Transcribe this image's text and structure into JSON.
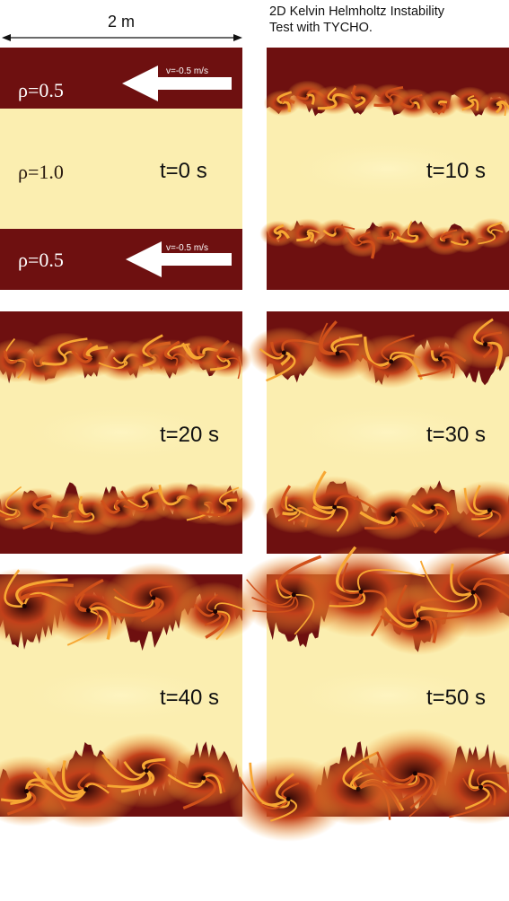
{
  "title_line1": "2D Kelvin Helmholtz Instability",
  "title_line2": "Test with TYCHO.",
  "width_label": "2 m",
  "initial": {
    "rho_top": "ρ=0.5",
    "rho_mid": "ρ=1.0",
    "rho_bot": "ρ=0.5",
    "vel_top": "v=-0.5 m/s",
    "vel_bot": "v=-0.5 m/s"
  },
  "panels": [
    {
      "id": "t0",
      "label": "t=0 s",
      "turbulence": 0
    },
    {
      "id": "t10",
      "label": "t=10 s",
      "turbulence": 1
    },
    {
      "id": "t20",
      "label": "t=20 s",
      "turbulence": 2
    },
    {
      "id": "t30",
      "label": "t=30 s",
      "turbulence": 3
    },
    {
      "id": "t40",
      "label": "t=40 s",
      "turbulence": 4
    },
    {
      "id": "t50",
      "label": "t=50 s",
      "turbulence": 5
    }
  ],
  "colors": {
    "dense": "#fbeeb0",
    "light": "#6e1010",
    "mid": "#d0501a",
    "bright": "#f7a733"
  }
}
